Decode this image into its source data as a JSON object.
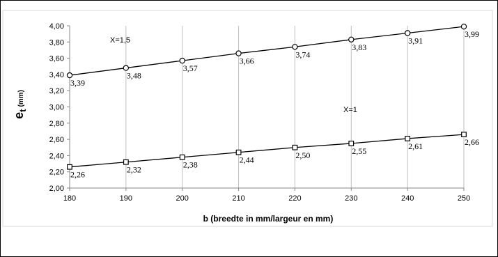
{
  "chart_data": {
    "type": "line",
    "title": "",
    "xlabel": "b (breedte in mm/largeur en mm)",
    "ylabel": {
      "main": "e",
      "sub": "t",
      "unit": "(mm)"
    },
    "x": [
      180,
      190,
      200,
      210,
      220,
      230,
      240,
      250
    ],
    "x_tick_labels": [
      "180",
      "190",
      "200",
      "210",
      "220",
      "230",
      "240",
      "250"
    ],
    "ylim": [
      2.0,
      4.0
    ],
    "y_tick_labels": [
      "2,00",
      "2,20",
      "2,40",
      "2,60",
      "2,80",
      "3,00",
      "3,20",
      "3,40",
      "3,60",
      "3,80",
      "4,00"
    ],
    "grid": {
      "vertical": true,
      "horizontal": false
    },
    "series": [
      {
        "name": "X=1,5",
        "marker": "circle",
        "values": [
          3.39,
          3.48,
          3.57,
          3.66,
          3.74,
          3.83,
          3.91,
          3.99
        ],
        "labels": [
          "3,39",
          "3,48",
          "3,57",
          "3,66",
          "3,74",
          "3,83",
          "3,91",
          "3,99"
        ]
      },
      {
        "name": "X=1",
        "marker": "square",
        "values": [
          2.26,
          2.32,
          2.38,
          2.44,
          2.5,
          2.55,
          2.61,
          2.66
        ],
        "labels": [
          "2,26",
          "2,32",
          "2,38",
          "2,44",
          "2,50",
          "2,55",
          "2,61",
          "2,66"
        ]
      }
    ],
    "colors": {
      "line": "#000000",
      "grid": "#bfbfbf",
      "axis": "#868686"
    }
  }
}
